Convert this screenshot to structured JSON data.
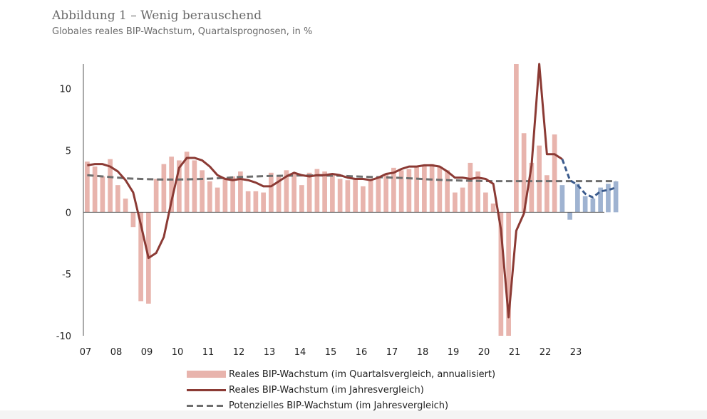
{
  "title": "Abbildung 1 – Wenig berauschend",
  "subtitle": "Globales reales BIP-Wachstum, Quartalsprognosen, in %",
  "colors": {
    "bar_actual": "#e8b4ad",
    "bar_forecast": "#9fb3d1",
    "line_actual": "#8b3a34",
    "line_forecast": "#3a5a8c",
    "potential": "#6e6e6e",
    "axis": "#555555"
  },
  "legend": [
    {
      "label": "Reales BIP-Wachstum (im Quartalsvergleich, annualisiert)",
      "symbol": "bar"
    },
    {
      "label": "Reales BIP-Wachstum (im Jahresvergleich)",
      "symbol": "line"
    },
    {
      "label": "Potenzielles BIP-Wachstum (im Jahresvergleich)",
      "symbol": "dashed-line"
    }
  ],
  "chart_data": {
    "type": "bar",
    "title": "Abbildung 1 – Wenig berauschend",
    "subtitle": "Globales reales BIP-Wachstum, Quartalsprognosen, in %",
    "ylim": [
      -10,
      12
    ],
    "yticks": [
      10,
      5,
      0,
      -5,
      -10
    ],
    "ytick_labels": [
      "10",
      "5",
      "0",
      "-5",
      "-10"
    ],
    "xtick_labels": [
      "07",
      "08",
      "09",
      "10",
      "11",
      "12",
      "13",
      "14",
      "15",
      "16",
      "17",
      "18",
      "19",
      "20",
      "21",
      "22",
      "23"
    ],
    "xlim_quarters": [
      0,
      68
    ],
    "legend_position": "bottom",
    "grid": false,
    "forecast_start_index": 62,
    "series": [
      {
        "name": "Reales BIP-Wachstum (im Quartalsvergleich, annualisiert)",
        "kind": "bar",
        "values": [
          4.1,
          3.7,
          2.9,
          4.3,
          2.2,
          1.1,
          -1.2,
          -7.2,
          -7.4,
          2.7,
          3.9,
          4.5,
          4.2,
          4.9,
          4.2,
          3.4,
          2.5,
          2.0,
          2.8,
          2.9,
          3.3,
          1.7,
          1.7,
          1.6,
          3.2,
          2.9,
          3.4,
          3.2,
          2.2,
          3.2,
          3.5,
          3.3,
          3.0,
          2.7,
          2.6,
          2.7,
          2.1,
          2.7,
          2.8,
          3.1,
          3.6,
          3.4,
          3.5,
          3.7,
          3.8,
          3.9,
          3.7,
          3.4,
          1.6,
          2.0,
          4.0,
          3.3,
          1.6,
          0.7,
          -10.0,
          -10.0,
          12.0,
          6.4,
          4.0,
          5.4,
          3.0,
          6.3,
          2.2,
          -0.6,
          2.3,
          1.3,
          1.1,
          2.0,
          2.3,
          2.5
        ]
      },
      {
        "name": "Reales BIP-Wachstum (im Jahresvergleich)",
        "kind": "line",
        "values": [
          3.8,
          3.9,
          3.9,
          3.7,
          3.3,
          2.6,
          1.6,
          -1.0,
          -3.7,
          -3.3,
          -2.0,
          0.9,
          3.6,
          4.4,
          4.4,
          4.2,
          3.7,
          3.0,
          2.7,
          2.6,
          2.7,
          2.6,
          2.4,
          2.1,
          2.1,
          2.5,
          2.9,
          3.2,
          3.0,
          2.9,
          3.0,
          3.0,
          3.1,
          3.0,
          2.8,
          2.7,
          2.7,
          2.6,
          2.8,
          3.1,
          3.2,
          3.5,
          3.7,
          3.7,
          3.8,
          3.8,
          3.7,
          3.3,
          2.8,
          2.8,
          2.7,
          2.8,
          2.7,
          2.3,
          -1.4,
          -8.5,
          -1.5,
          -0.1,
          3.8,
          12.0,
          4.7,
          4.7,
          4.3,
          2.6,
          2.2,
          1.5,
          1.2,
          1.7,
          1.8,
          2.0
        ]
      },
      {
        "name": "Potenzielles BIP-Wachstum (im Jahresvergleich)",
        "kind": "dashed-line",
        "values": [
          3.0,
          2.95,
          2.9,
          2.85,
          2.8,
          2.75,
          2.72,
          2.7,
          2.68,
          2.66,
          2.65,
          2.65,
          2.65,
          2.66,
          2.68,
          2.7,
          2.72,
          2.75,
          2.78,
          2.82,
          2.86,
          2.88,
          2.9,
          2.92,
          2.94,
          2.95,
          2.96,
          2.97,
          2.98,
          2.98,
          2.98,
          2.97,
          2.96,
          2.95,
          2.93,
          2.9,
          2.88,
          2.86,
          2.84,
          2.82,
          2.8,
          2.78,
          2.75,
          2.72,
          2.68,
          2.65,
          2.62,
          2.6,
          2.58,
          2.56,
          2.55,
          2.54,
          2.53,
          2.52,
          2.52,
          2.52,
          2.52,
          2.52,
          2.52,
          2.52,
          2.52,
          2.52,
          2.52,
          2.52,
          2.52,
          2.52,
          2.52,
          2.52,
          2.52,
          2.52
        ]
      }
    ]
  }
}
